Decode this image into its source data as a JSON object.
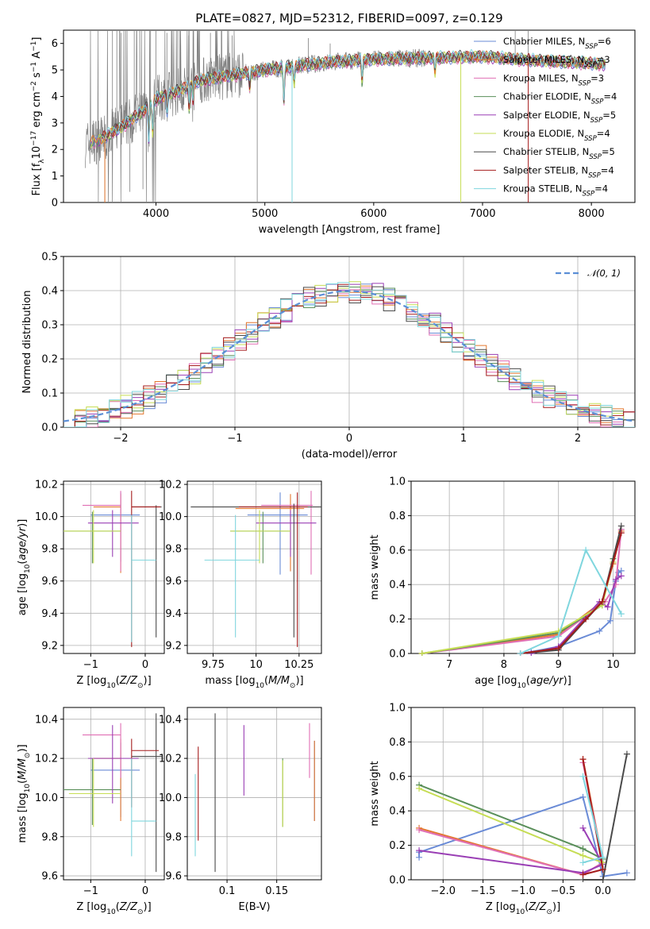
{
  "figure_title": "PLATE=0827, MJD=52312, FIBERID=0097, z=0.129",
  "colors": {
    "Chabrier MILES": "#6a8bd6",
    "Salpeter MILES": "#e3772e",
    "Kroupa MILES": "#e06fb4",
    "Chabrier ELODIE": "#5a8f5a",
    "Salpeter ELODIE": "#9a3fb5",
    "Kroupa ELODIE": "#c6dd54",
    "Chabrier STELIB": "#4a4a4a",
    "Salpeter STELIB": "#a51c1c",
    "Kroupa STELIB": "#7fd6de"
  },
  "legend": [
    {
      "model": "Chabrier MILES",
      "text": "Chabrier MILES, N",
      "sub": "SSP",
      "tail": "=6"
    },
    {
      "model": "Salpeter MILES",
      "text": "Salpeter MILES, N",
      "sub": "SSP",
      "tail": "=3"
    },
    {
      "model": "Kroupa MILES",
      "text": "Kroupa MILES, N",
      "sub": "SSP",
      "tail": "=3"
    },
    {
      "model": "Chabrier ELODIE",
      "text": "Chabrier ELODIE, N",
      "sub": "SSP",
      "tail": "=4"
    },
    {
      "model": "Salpeter ELODIE",
      "text": "Salpeter ELODIE, N",
      "sub": "SSP",
      "tail": "=5"
    },
    {
      "model": "Kroupa ELODIE",
      "text": "Kroupa ELODIE, N",
      "sub": "SSP",
      "tail": "=4"
    },
    {
      "model": "Chabrier STELIB",
      "text": "Chabrier STELIB, N",
      "sub": "SSP",
      "tail": "=5"
    },
    {
      "model": "Salpeter STELIB",
      "text": "Salpeter STELIB, N",
      "sub": "SSP",
      "tail": "=4"
    },
    {
      "model": "Kroupa STELIB",
      "text": "Kroupa STELIB, N",
      "sub": "SSP",
      "tail": "=4"
    }
  ],
  "chart_data": [
    {
      "id": "spectrum",
      "type": "line",
      "title": "PLATE=0827, MJD=52312, FIBERID=0097, z=0.129",
      "xlabel": "wavelength [Angstrom, rest frame]",
      "ylabel": "Flux [f_λ10^-17 erg cm^-2 s^-1 A^-1]",
      "xlim": [
        3150,
        8400
      ],
      "ylim": [
        0,
        6.5
      ],
      "xticks": [
        4000,
        5000,
        6000,
        7000,
        8000
      ],
      "yticks": [
        0,
        1,
        2,
        3,
        4,
        5,
        6
      ],
      "grid": false,
      "legend_position": "upper right",
      "data_color": "#808080",
      "continuum": [
        [
          3350,
          2.2
        ],
        [
          3500,
          2.4
        ],
        [
          3700,
          2.9
        ],
        [
          3900,
          3.5
        ],
        [
          4000,
          3.9
        ],
        [
          4200,
          4.2
        ],
        [
          4400,
          4.6
        ],
        [
          4700,
          4.8
        ],
        [
          5000,
          5.0
        ],
        [
          5300,
          5.15
        ],
        [
          5600,
          5.3
        ],
        [
          6000,
          5.4
        ],
        [
          6500,
          5.45
        ],
        [
          7000,
          5.5
        ],
        [
          7500,
          5.35
        ],
        [
          8000,
          5.25
        ],
        [
          8130,
          5.2
        ]
      ],
      "absorption_lines": [
        [
          3934,
          0.35
        ],
        [
          3969,
          0.3
        ],
        [
          4102,
          0.15
        ],
        [
          4304,
          0.2
        ],
        [
          4340,
          0.15
        ],
        [
          4861,
          0.12
        ],
        [
          5175,
          0.25
        ],
        [
          5270,
          0.12
        ],
        [
          5893,
          0.15
        ],
        [
          6563,
          0.1
        ]
      ],
      "data_spikes": [
        [
          3530,
          0.0
        ],
        [
          3600,
          6.5
        ],
        [
          3640,
          6.5
        ],
        [
          3680,
          6.4
        ],
        [
          3720,
          6.5
        ],
        [
          3760,
          0.4
        ],
        [
          3800,
          6.5
        ],
        [
          3850,
          6.5
        ],
        [
          3880,
          0.5
        ],
        [
          3950,
          6.5
        ],
        [
          4000,
          6.5
        ],
        [
          4100,
          6.4
        ],
        [
          4200,
          6.5
        ],
        [
          4300,
          6.3
        ],
        [
          4400,
          6.5
        ],
        [
          4500,
          6.4
        ],
        [
          4600,
          6.5
        ],
        [
          4700,
          6.3
        ],
        [
          4930,
          0.0
        ],
        [
          5250,
          0.0
        ],
        [
          5400,
          6.2
        ],
        [
          5600,
          6.0
        ],
        [
          7300,
          6.5
        ],
        [
          7420,
          6.5
        ]
      ],
      "model_drops": [
        {
          "model": "Kroupa ELODIE",
          "x": 6800
        },
        {
          "model": "Salpeter STELIB",
          "x": 7420
        },
        {
          "model": "Salpeter MILES",
          "x": 3530
        },
        {
          "model": "Kroupa STELIB",
          "x": 5250
        }
      ]
    },
    {
      "id": "residuals",
      "type": "histogram",
      "xlabel": "(data-model)/error",
      "ylabel": "Normed distribution",
      "xlim": [
        -2.5,
        2.5
      ],
      "ylim": [
        0,
        0.5
      ],
      "xticks": [
        -2,
        -1,
        0,
        1,
        2
      ],
      "yticks": [
        0.0,
        0.1,
        0.2,
        0.3,
        0.4,
        0.5
      ],
      "grid": true,
      "legend_position": "upper right",
      "gaussian_label": "N(0,1)",
      "gaussian_color": "#5b8fd6",
      "bin_width": 0.1,
      "bin_start": -2.5
    },
    {
      "id": "age_vs_Z",
      "type": "errorbar",
      "xlabel": "Z [log10(Z/Z_sun)]",
      "ylabel": "age [log10(age/yr)]",
      "xlim": [
        -1.5,
        0.35
      ],
      "ylim": [
        9.15,
        10.22
      ],
      "xticks": [
        -1,
        0
      ],
      "yticks": [
        9.2,
        9.4,
        9.6,
        9.8,
        10.0,
        10.2
      ],
      "grid": true,
      "points": [
        {
          "model": "Chabrier MILES",
          "x": -0.45,
          "xlo": -1.0,
          "xhi": -0.1,
          "y": 10.01,
          "ylo": 9.72,
          "yhi": 10.15
        },
        {
          "model": "Salpeter MILES",
          "x": -0.45,
          "xlo": -0.95,
          "xhi": -0.45,
          "y": 10.06,
          "ylo": 9.65,
          "yhi": 10.14
        },
        {
          "model": "Kroupa MILES",
          "x": -0.45,
          "xlo": -1.15,
          "xhi": -0.45,
          "y": 10.07,
          "ylo": 9.66,
          "yhi": 10.16
        },
        {
          "model": "Chabrier ELODIE",
          "x": -0.97,
          "xlo": -1.5,
          "xhi": -0.45,
          "y": 9.91,
          "ylo": 9.71,
          "yhi": 10.03
        },
        {
          "model": "Salpeter ELODIE",
          "x": -0.6,
          "xlo": -1.05,
          "xhi": -0.12,
          "y": 9.96,
          "ylo": 9.75,
          "yhi": 10.04
        },
        {
          "model": "Kroupa ELODIE",
          "x": -0.95,
          "xlo": -1.5,
          "xhi": -0.45,
          "y": 9.91,
          "ylo": 9.71,
          "yhi": 10.04
        },
        {
          "model": "Chabrier STELIB",
          "x": 0.2,
          "xlo": -0.25,
          "xhi": 0.3,
          "y": 10.06,
          "ylo": 9.25,
          "yhi": 10.07
        },
        {
          "model": "Salpeter STELIB",
          "x": -0.25,
          "xlo": -0.25,
          "xhi": 0.28,
          "y": 10.06,
          "ylo": 9.19,
          "yhi": 10.16
        },
        {
          "model": "Kroupa STELIB",
          "x": -0.25,
          "xlo": -0.25,
          "xhi": 0.2,
          "y": 9.73,
          "ylo": 9.22,
          "yhi": 10.01
        }
      ]
    },
    {
      "id": "age_vs_mass",
      "type": "errorbar",
      "xlabel": "mass [log10(M/M_sun)]",
      "ylabel": "",
      "xlim": [
        9.6,
        10.38
      ],
      "ylim": [
        9.15,
        10.22
      ],
      "xticks": [
        9.75,
        10.0,
        10.25
      ],
      "yticks": [
        9.2,
        9.4,
        9.6,
        9.8,
        10.0,
        10.2
      ],
      "grid": true,
      "points": [
        {
          "model": "Chabrier MILES",
          "x": 10.14,
          "xlo": 9.95,
          "xhi": 10.3,
          "y": 10.01,
          "ylo": 9.64,
          "yhi": 10.15
        },
        {
          "model": "Salpeter MILES",
          "x": 10.2,
          "xlo": 9.88,
          "xhi": 10.28,
          "y": 10.05,
          "ylo": 9.66,
          "yhi": 10.14
        },
        {
          "model": "Kroupa MILES",
          "x": 10.32,
          "xlo": 10.03,
          "xhi": 10.33,
          "y": 10.07,
          "ylo": 9.64,
          "yhi": 10.16
        },
        {
          "model": "Chabrier ELODIE",
          "x": 10.04,
          "xlo": 9.85,
          "xhi": 10.2,
          "y": 9.91,
          "ylo": 9.71,
          "yhi": 10.03
        },
        {
          "model": "Salpeter ELODIE",
          "x": 10.2,
          "xlo": 10.0,
          "xhi": 10.35,
          "y": 9.96,
          "ylo": 9.75,
          "yhi": 10.04
        },
        {
          "model": "Kroupa ELODIE",
          "x": 10.02,
          "xlo": 9.85,
          "xhi": 10.2,
          "y": 9.91,
          "ylo": 9.71,
          "yhi": 10.04
        },
        {
          "model": "Chabrier STELIB",
          "x": 10.22,
          "xlo": 9.62,
          "xhi": 10.38,
          "y": 10.06,
          "ylo": 9.25,
          "yhi": 10.08
        },
        {
          "model": "Salpeter STELIB",
          "x": 10.24,
          "xlo": 9.9,
          "xhi": 10.3,
          "y": 10.06,
          "ylo": 9.19,
          "yhi": 10.15
        },
        {
          "model": "Kroupa STELIB",
          "x": 9.88,
          "xlo": 9.7,
          "xhi": 10.02,
          "y": 9.73,
          "ylo": 9.25,
          "yhi": 10.01
        }
      ]
    },
    {
      "id": "weight_vs_age",
      "type": "line",
      "xlabel": "age [log10(age/yr)]",
      "ylabel": "mass weight",
      "xlim": [
        6.3,
        10.4
      ],
      "ylim": [
        0,
        1.0
      ],
      "xticks": [
        7,
        8,
        9,
        10
      ],
      "yticks": [
        0.0,
        0.2,
        0.4,
        0.6,
        0.8,
        1.0
      ],
      "grid": true,
      "series": [
        {
          "model": "Chabrier MILES",
          "x": [
            8.5,
            9.0,
            9.75,
            9.95,
            10.05,
            10.1,
            10.15
          ],
          "y": [
            0.01,
            0.04,
            0.13,
            0.19,
            0.42,
            0.47,
            0.48
          ]
        },
        {
          "model": "Salpeter MILES",
          "x": [
            6.5,
            9.0,
            9.8,
            10.0,
            10.15
          ],
          "y": [
            0.0,
            0.11,
            0.3,
            0.52,
            0.71
          ]
        },
        {
          "model": "Kroupa MILES",
          "x": [
            6.5,
            9.0,
            9.85,
            10.05,
            10.15
          ],
          "y": [
            0.0,
            0.1,
            0.3,
            0.4,
            0.72
          ]
        },
        {
          "model": "Chabrier ELODIE",
          "x": [
            6.5,
            9.0,
            9.8,
            10.0
          ],
          "y": [
            0.0,
            0.12,
            0.28,
            0.55
          ]
        },
        {
          "model": "Salpeter ELODIE",
          "x": [
            8.5,
            9.0,
            9.75,
            9.9,
            10.05,
            10.15
          ],
          "y": [
            0.0,
            0.04,
            0.3,
            0.27,
            0.43,
            0.45
          ]
        },
        {
          "model": "Kroupa ELODIE",
          "x": [
            6.5,
            9.0,
            9.8,
            10.0
          ],
          "y": [
            0.0,
            0.13,
            0.28,
            0.53
          ]
        },
        {
          "model": "Chabrier STELIB",
          "x": [
            8.3,
            9.0,
            9.8,
            10.15
          ],
          "y": [
            0.0,
            0.02,
            0.3,
            0.74
          ]
        },
        {
          "model": "Salpeter STELIB",
          "x": [
            8.3,
            9.0,
            9.5,
            9.8,
            10.15
          ],
          "y": [
            0.0,
            0.03,
            0.2,
            0.3,
            0.7
          ]
        },
        {
          "model": "Kroupa STELIB",
          "x": [
            8.3,
            9.0,
            9.5,
            10.15
          ],
          "y": [
            0.0,
            0.1,
            0.6,
            0.23
          ]
        }
      ]
    },
    {
      "id": "mass_vs_Z",
      "type": "errorbar",
      "xlabel": "Z [log10(Z/Z_sun)]",
      "ylabel": "mass [log10(M/M_sun)]",
      "xlim": [
        -1.5,
        0.35
      ],
      "ylim": [
        9.58,
        10.46
      ],
      "xticks": [
        -1,
        0
      ],
      "yticks": [
        9.6,
        9.8,
        10.0,
        10.2,
        10.4
      ],
      "grid": true,
      "points": [
        {
          "model": "Chabrier MILES",
          "x": -0.45,
          "xlo": -1.0,
          "xhi": -0.1,
          "y": 10.14,
          "ylo": 9.9,
          "yhi": 10.28
        },
        {
          "model": "Salpeter MILES",
          "x": -0.45,
          "xlo": -0.95,
          "xhi": -0.45,
          "y": 10.2,
          "ylo": 9.88,
          "yhi": 10.3
        },
        {
          "model": "Kroupa MILES",
          "x": -0.45,
          "xlo": -1.15,
          "xhi": -0.45,
          "y": 10.32,
          "ylo": 10.1,
          "yhi": 10.38
        },
        {
          "model": "Chabrier ELODIE",
          "x": -0.97,
          "xlo": -1.5,
          "xhi": -0.45,
          "y": 10.04,
          "ylo": 9.86,
          "yhi": 10.2
        },
        {
          "model": "Salpeter ELODIE",
          "x": -0.6,
          "xlo": -1.05,
          "xhi": -0.12,
          "y": 10.2,
          "ylo": 9.97,
          "yhi": 10.37
        },
        {
          "model": "Kroupa ELODIE",
          "x": -0.95,
          "xlo": -1.4,
          "xhi": -0.45,
          "y": 10.02,
          "ylo": 9.85,
          "yhi": 10.2
        },
        {
          "model": "Chabrier STELIB",
          "x": 0.2,
          "xlo": -0.25,
          "xhi": 0.3,
          "y": 10.21,
          "ylo": 9.62,
          "yhi": 10.43
        },
        {
          "model": "Salpeter STELIB",
          "x": -0.25,
          "xlo": -0.25,
          "xhi": 0.25,
          "y": 10.24,
          "ylo": 9.95,
          "yhi": 10.3
        },
        {
          "model": "Kroupa STELIB",
          "x": -0.25,
          "xlo": -0.25,
          "xhi": 0.2,
          "y": 9.88,
          "ylo": 9.7,
          "yhi": 10.2
        }
      ]
    },
    {
      "id": "mass_vs_ebv",
      "type": "errorbar",
      "xlabel": "E(B-V)",
      "ylabel": "",
      "xlim": [
        0.06,
        0.195
      ],
      "ylim": [
        9.58,
        10.46
      ],
      "xticks": [
        0.1,
        0.15
      ],
      "yticks": [
        9.6,
        9.8,
        10.0,
        10.2,
        10.4
      ],
      "grid": true,
      "points": [
        {
          "model": "Chabrier MILES",
          "x": 0.188,
          "y": 10.14,
          "ylo": 9.88,
          "yhi": 10.29
        },
        {
          "model": "Salpeter MILES",
          "x": 0.188,
          "y": 10.2,
          "ylo": 9.88,
          "yhi": 10.29
        },
        {
          "model": "Kroupa MILES",
          "x": 0.183,
          "y": 10.32,
          "ylo": 10.1,
          "yhi": 10.38
        },
        {
          "model": "Chabrier ELODIE",
          "x": 0.156,
          "y": 10.04,
          "ylo": 9.85,
          "yhi": 10.2
        },
        {
          "model": "Salpeter ELODIE",
          "x": 0.117,
          "y": 10.2,
          "ylo": 10.01,
          "yhi": 10.37
        },
        {
          "model": "Kroupa ELODIE",
          "x": 0.156,
          "y": 10.02,
          "ylo": 9.85,
          "yhi": 10.19
        },
        {
          "model": "Chabrier STELIB",
          "x": 0.088,
          "y": 10.21,
          "ylo": 9.62,
          "yhi": 10.43
        },
        {
          "model": "Salpeter STELIB",
          "x": 0.071,
          "y": 10.24,
          "ylo": 9.78,
          "yhi": 10.26
        },
        {
          "model": "Kroupa STELIB",
          "x": 0.068,
          "y": 9.88,
          "ylo": 9.7,
          "yhi": 10.12
        }
      ]
    },
    {
      "id": "weight_vs_Z",
      "type": "line",
      "xlabel": "Z [log10(Z/Z_sun)]",
      "ylabel": "mass weight",
      "xlim": [
        -2.4,
        0.4
      ],
      "ylim": [
        0,
        1.0
      ],
      "xticks": [
        -2.0,
        -1.5,
        -1.0,
        -0.5,
        0.0
      ],
      "yticks": [
        0.0,
        0.2,
        0.4,
        0.6,
        0.8,
        1.0
      ],
      "grid": true,
      "series": [
        {
          "model": "Chabrier MILES",
          "x": [
            -2.3,
            -2.3,
            -0.25,
            0.0,
            0.3
          ],
          "y": [
            0.13,
            0.16,
            0.48,
            0.02,
            0.04
          ]
        },
        {
          "model": "Salpeter MILES",
          "x": [
            -2.3,
            -0.25,
            0.0,
            -0.25
          ],
          "y": [
            0.3,
            0.03,
            0.1,
            0.7
          ]
        },
        {
          "model": "Kroupa MILES",
          "x": [
            -2.3,
            -0.25,
            0.0,
            -0.25
          ],
          "y": [
            0.29,
            0.03,
            0.1,
            0.68
          ]
        },
        {
          "model": "Chabrier ELODIE",
          "x": [
            -2.3,
            -0.25,
            0.0
          ],
          "y": [
            0.55,
            0.18,
            0.12
          ]
        },
        {
          "model": "Salpeter ELODIE",
          "x": [
            -2.3,
            -0.25,
            0.0,
            -0.25
          ],
          "y": [
            0.17,
            0.04,
            0.09,
            0.3
          ]
        },
        {
          "model": "Kroupa ELODIE",
          "x": [
            -2.3,
            -0.25,
            0.0
          ],
          "y": [
            0.53,
            0.14,
            0.1
          ]
        },
        {
          "model": "Chabrier STELIB",
          "x": [
            -0.25,
            0.0,
            0.3
          ],
          "y": [
            0.0,
            0.0,
            0.73
          ]
        },
        {
          "model": "Salpeter STELIB",
          "x": [
            -0.25,
            0.0,
            -0.25
          ],
          "y": [
            0.03,
            0.06,
            0.7
          ]
        },
        {
          "model": "Kroupa STELIB",
          "x": [
            -0.25,
            0.0,
            -0.25
          ],
          "y": [
            0.1,
            0.13,
            0.6
          ]
        }
      ]
    }
  ]
}
